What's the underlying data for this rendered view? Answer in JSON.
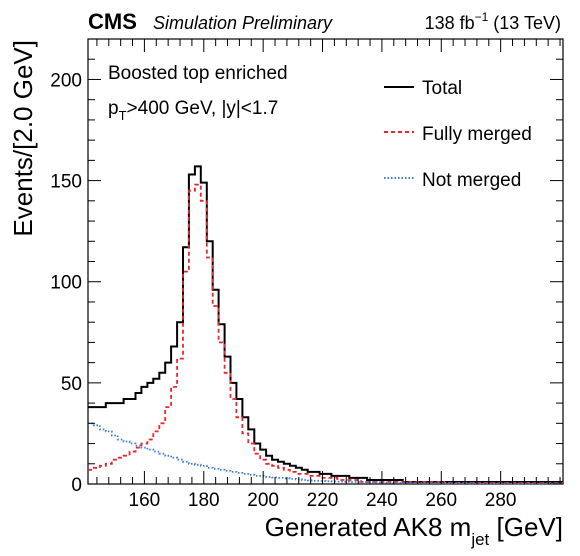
{
  "header": {
    "cms": "CMS",
    "extra": "Simulation Preliminary",
    "lumi_value": "138 fb",
    "lumi_exp": "−1",
    "lumi_energy": " (13 TeV)"
  },
  "annotations": {
    "line1": "Boosted top enriched",
    "pt_p": "p",
    "pt_sub": "T",
    "pt_rest": ">400 GeV, |y|<1.7"
  },
  "axes": {
    "xlabel_main": "Generated AK8 m",
    "xlabel_sub": "jet",
    "xlabel_unit": " [GeV]",
    "ylabel": "Events/[2.0 GeV]"
  },
  "legend": {
    "placement": "top-right",
    "entries": [
      {
        "label": "Total",
        "color": "#000000",
        "style": "solid"
      },
      {
        "label": "Fully merged",
        "color": "#e8262e",
        "style": "dashed"
      },
      {
        "label": "Not merged",
        "color": "#3b7ddd",
        "style": "dotted"
      }
    ]
  },
  "chart_data": {
    "type": "line",
    "drawstyle": "steps",
    "xlabel": "Generated AK8 m_jet [GeV]",
    "ylabel": "Events/[2.0 GeV]",
    "xlim": [
      141,
      301
    ],
    "ylim": [
      0,
      220
    ],
    "xticks": [
      160,
      180,
      200,
      220,
      240,
      260,
      280
    ],
    "yticks": [
      0,
      50,
      100,
      150,
      200
    ],
    "bin_width": 2,
    "bin_edges_start": 141,
    "grid": false,
    "series": [
      {
        "name": "Total",
        "color": "#000000",
        "values": [
          38,
          38,
          38,
          40,
          40,
          40,
          42,
          42,
          45,
          48,
          50,
          52,
          55,
          60,
          68,
          80,
          117,
          153,
          157,
          149,
          120,
          96,
          79,
          63,
          50,
          42,
          33,
          27,
          20,
          17,
          14,
          12,
          11,
          10,
          9,
          8,
          7,
          6,
          6,
          5,
          5,
          4,
          4,
          4,
          3,
          3,
          3,
          2,
          2,
          2,
          2,
          2,
          2,
          1,
          1,
          1,
          1,
          1,
          1,
          1,
          1,
          1,
          1,
          1,
          1,
          1,
          1,
          1,
          1,
          1,
          1,
          1,
          1,
          1,
          1,
          1,
          1,
          1,
          1,
          1
        ]
      },
      {
        "name": "Fully merged",
        "color": "#e8262e",
        "values": [
          7,
          8,
          9,
          10,
          12,
          13,
          14,
          16,
          18,
          20,
          22,
          26,
          30,
          38,
          48,
          62,
          105,
          145,
          148,
          140,
          112,
          88,
          70,
          55,
          42,
          33,
          25,
          20,
          15,
          12,
          10,
          9,
          8,
          7,
          6,
          5,
          5,
          4,
          4,
          3,
          3,
          3,
          2,
          2,
          2,
          2,
          1,
          1,
          1,
          1,
          1,
          1,
          1,
          1,
          1,
          1,
          1,
          1,
          1,
          1,
          0.5,
          0.5,
          0.5,
          0.5,
          0.5,
          0.5,
          0.5,
          0.5,
          0.5,
          0.5,
          0.5,
          0.5,
          0.5,
          0.5,
          0.5,
          0.5,
          0.5,
          0.5,
          0.5,
          0.5
        ]
      },
      {
        "name": "Not merged",
        "color": "#3b7ddd",
        "values": [
          30,
          29,
          27,
          26,
          24,
          22,
          21,
          20,
          19,
          18,
          17,
          16,
          15,
          14,
          13,
          12,
          11,
          10,
          9.5,
          9,
          8,
          7.5,
          7,
          6.5,
          6,
          5.5,
          5,
          4.5,
          4,
          4,
          3.5,
          3.2,
          3,
          2.8,
          2.5,
          2.3,
          2,
          1.8,
          1.6,
          1.5,
          1.4,
          1.3,
          1.2,
          1.1,
          1,
          1,
          0.9,
          0.9,
          0.8,
          0.8,
          0.7,
          0.7,
          0.6,
          0.6,
          0.6,
          0.5,
          0.5,
          0.5,
          0.5,
          0.5,
          0.4,
          0.4,
          0.4,
          0.4,
          0.4,
          0.3,
          0.3,
          0.3,
          0.3,
          0.3,
          0.3,
          0.3,
          0.3,
          0.3,
          0.3,
          0.3,
          0.3,
          0.3,
          0.3,
          0.3
        ]
      }
    ]
  }
}
